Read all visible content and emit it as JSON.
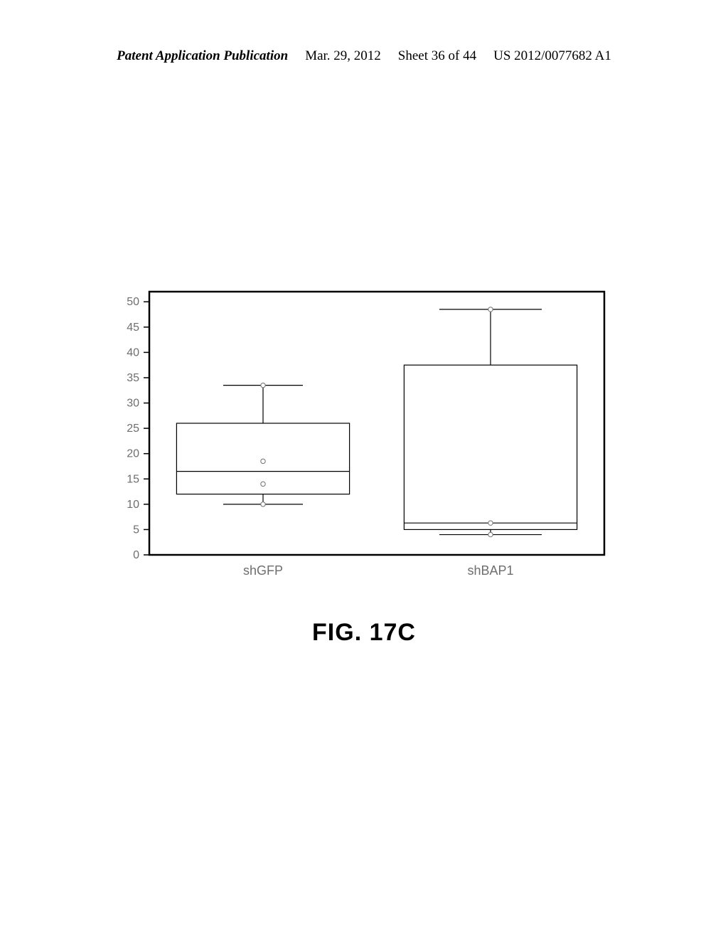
{
  "header": {
    "left": "Patent Application Publication",
    "date": "Mar. 29, 2012",
    "sheet": "Sheet 36 of 44",
    "docnum": "US 2012/0077682 A1"
  },
  "figure": {
    "caption": "FIG. 17C"
  },
  "chart": {
    "type": "boxplot",
    "background_color": "#ffffff",
    "border_color": "#000000",
    "outer_stroke_width": 2.5,
    "text_color": "#6e6e6e",
    "axis_font_family": "Arial, Helvetica, sans-serif",
    "axis_tick_fontsize": 16,
    "axis_label_fontsize": 18,
    "ylim": [
      0,
      52
    ],
    "yticks": [
      0,
      5,
      10,
      15,
      20,
      25,
      30,
      35,
      40,
      45,
      50
    ],
    "categories": [
      "shGFP",
      "shBAP1"
    ],
    "box_line_width": 1.2,
    "whisker_line_width": 1.2,
    "marker_radius": 3.2,
    "marker_fill": "#ffffff",
    "marker_stroke": "#707070",
    "boxes": [
      {
        "x_index": 0,
        "whisker_low": 10,
        "q1": 12,
        "median": 16.5,
        "q3": 26,
        "whisker_high": 33.5,
        "markers": [
          18.5,
          14
        ],
        "whisker_cap_width": 0.35
      },
      {
        "x_index": 1,
        "whisker_low": 4,
        "q1": 5,
        "median": 6.3,
        "q3": 37.5,
        "whisker_high": 48.5,
        "markers": [
          6.3
        ],
        "whisker_cap_width": 0.45
      }
    ],
    "tick_len": 8,
    "box_half_width": 0.38
  }
}
